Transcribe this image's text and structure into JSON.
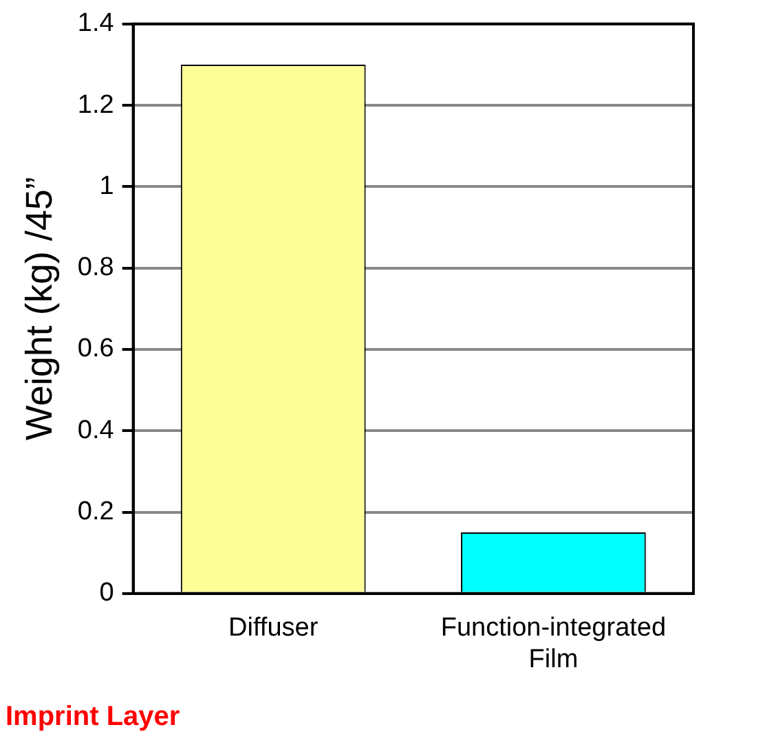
{
  "chart_data": {
    "type": "bar",
    "ylabel": "Weight (kg) /45”",
    "categories": [
      "Diffuser",
      "Function-integrated Film"
    ],
    "values": [
      1.3,
      0.15
    ],
    "colors": [
      "#ffff99",
      "#00ffff"
    ],
    "ylim": [
      0,
      1.4
    ],
    "yticks": [
      0,
      0.2,
      0.4,
      0.6,
      0.8,
      1,
      1.2,
      1.4
    ],
    "grid": "y",
    "legend": false,
    "annotations": [
      "Imprint Layer"
    ]
  }
}
